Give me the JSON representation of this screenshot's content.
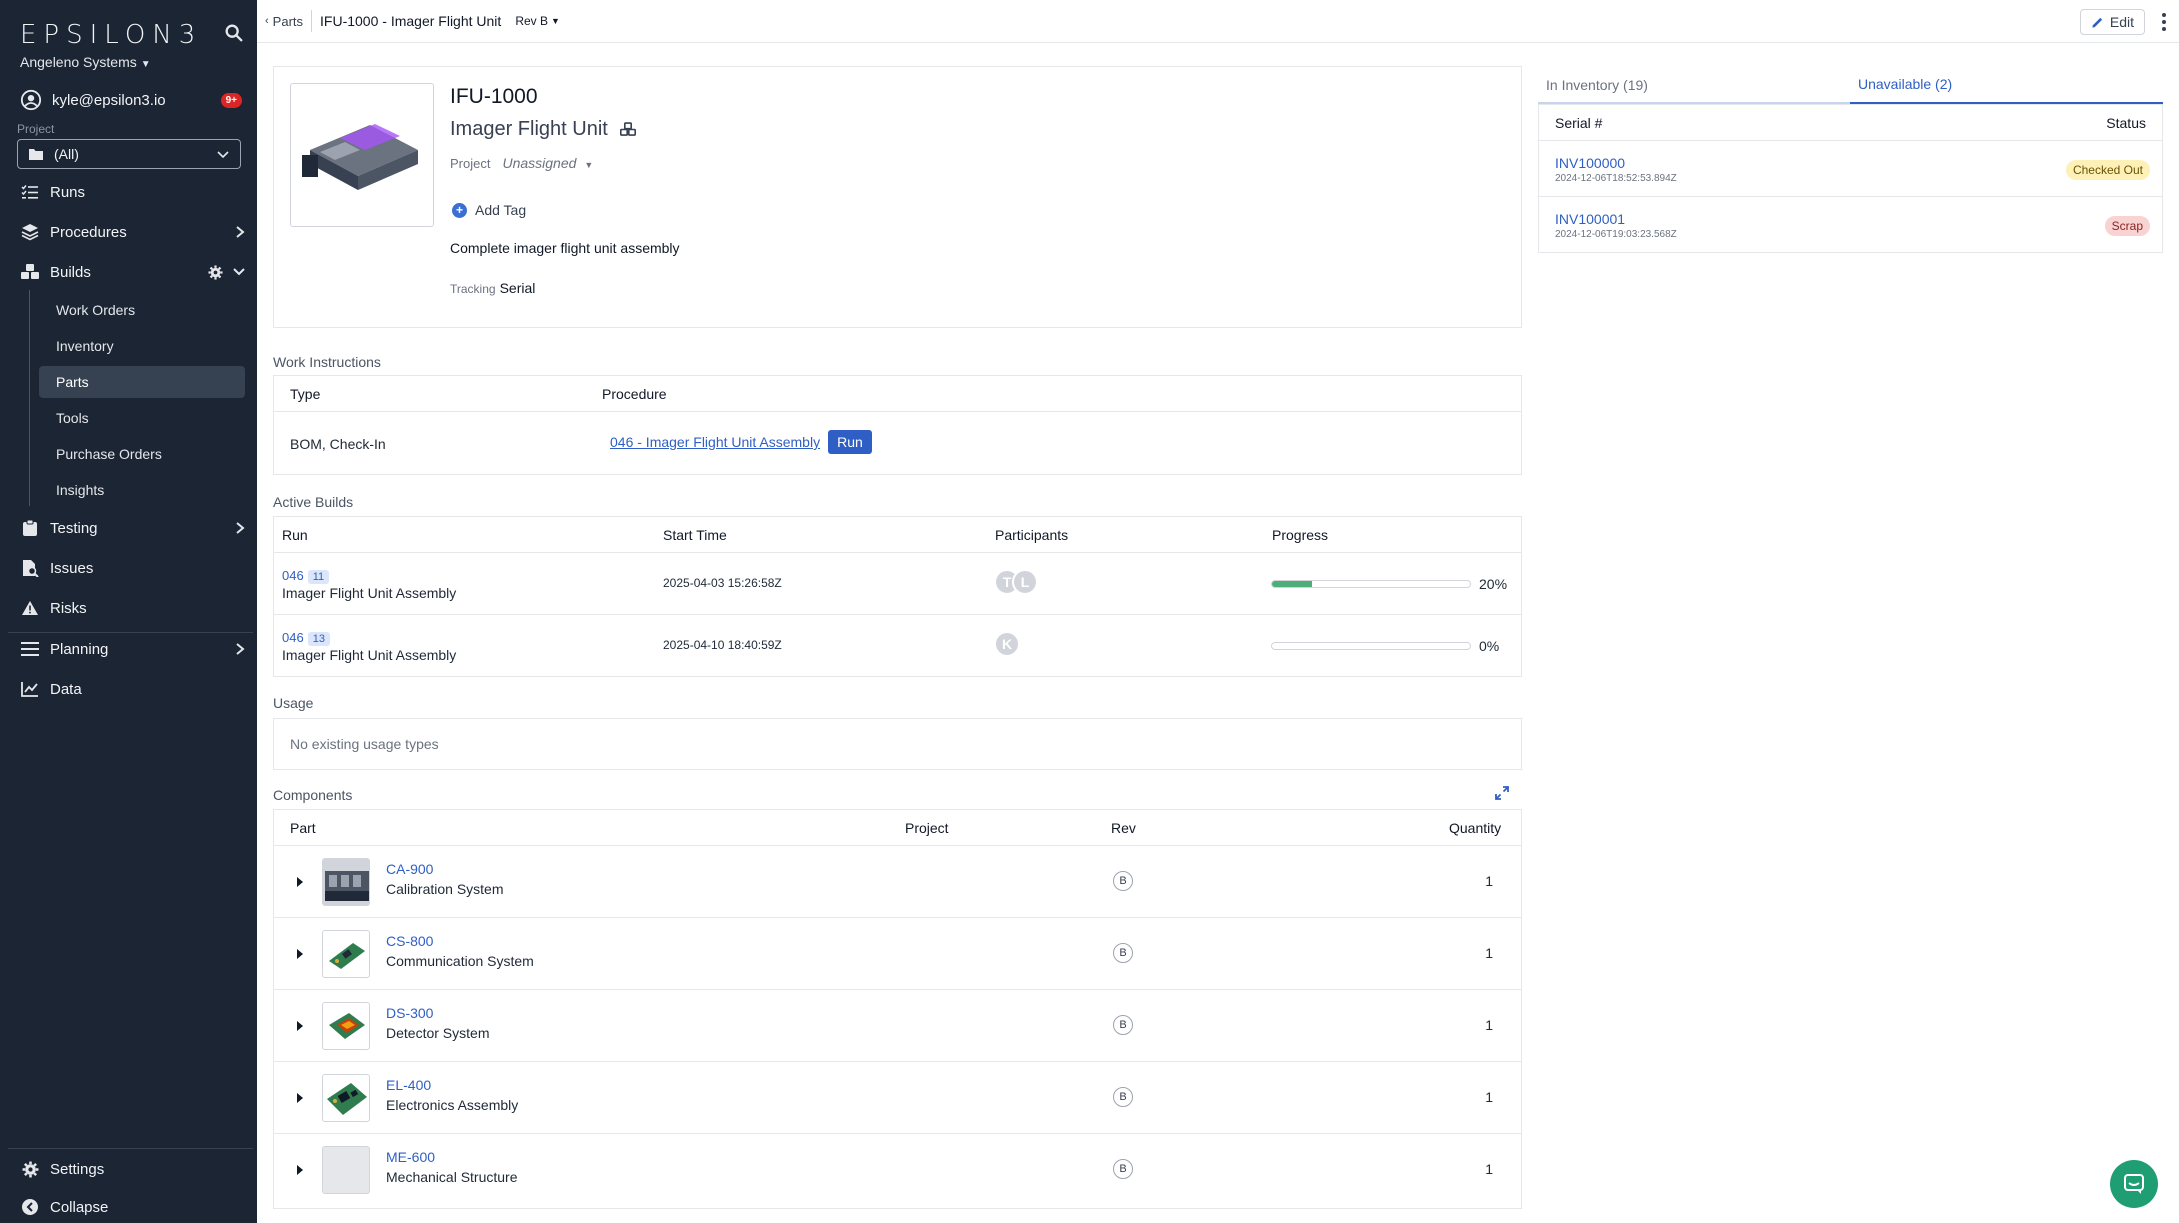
{
  "app": {
    "logo": "EPSILON3",
    "org": "Angeleno Systems"
  },
  "user": {
    "email": "kyle@epsilon3.io",
    "notifications": "9+"
  },
  "project_filter": {
    "label": "Project",
    "value": "(All)"
  },
  "nav": {
    "runs": "Runs",
    "procedures": "Procedures",
    "builds": "Builds",
    "builds_sub": [
      "Work Orders",
      "Inventory",
      "Parts",
      "Tools",
      "Purchase Orders",
      "Insights"
    ],
    "testing": "Testing",
    "issues": "Issues",
    "risks": "Risks",
    "planning": "Planning",
    "data": "Data",
    "settings": "Settings",
    "collapse": "Collapse"
  },
  "topbar": {
    "back": "Parts",
    "title": "IFU-1000 - Imager Flight Unit",
    "rev": "Rev B",
    "edit": "Edit"
  },
  "part": {
    "number": "IFU-1000",
    "name": "Imager Flight Unit",
    "project_label": "Project",
    "project_value": "Unassigned",
    "add_tag": "Add Tag",
    "description": "Complete imager flight unit assembly",
    "tracking_label": "Tracking",
    "tracking_value": "Serial"
  },
  "work_instructions": {
    "title": "Work Instructions",
    "headers": [
      "Type",
      "Procedure"
    ],
    "row": {
      "type": "BOM, Check-In",
      "procedure": "046 - Imager Flight Unit Assembly",
      "run": "Run"
    }
  },
  "active_builds": {
    "title": "Active Builds",
    "headers": [
      "Run",
      "Start Time",
      "Participants",
      "Progress"
    ],
    "rows": [
      {
        "id": "046",
        "badge": "11",
        "name": "Imager Flight Unit Assembly",
        "start": "2025-04-03 15:26:58Z",
        "participants": [
          "T",
          "L"
        ],
        "progress": 20,
        "progress_label": "20%"
      },
      {
        "id": "046",
        "badge": "13",
        "name": "Imager Flight Unit Assembly",
        "start": "2025-04-10 18:40:59Z",
        "participants": [
          "K"
        ],
        "progress": 0,
        "progress_label": "0%"
      }
    ]
  },
  "usage": {
    "title": "Usage",
    "empty": "No existing usage types"
  },
  "components": {
    "title": "Components",
    "headers": [
      "Part",
      "Project",
      "Rev",
      "Quantity"
    ],
    "rows": [
      {
        "part": "CA-900",
        "name": "Calibration System",
        "rev": "B",
        "qty": "1"
      },
      {
        "part": "CS-800",
        "name": "Communication System",
        "rev": "B",
        "qty": "1"
      },
      {
        "part": "DS-300",
        "name": "Detector System",
        "rev": "B",
        "qty": "1"
      },
      {
        "part": "EL-400",
        "name": "Electronics Assembly",
        "rev": "B",
        "qty": "1"
      },
      {
        "part": "ME-600",
        "name": "Mechanical Structure",
        "rev": "B",
        "qty": "1"
      }
    ]
  },
  "inventory": {
    "tab_in": "In Inventory (19)",
    "tab_unavailable": "Unavailable (2)",
    "headers": [
      "Serial #",
      "Status"
    ],
    "rows": [
      {
        "serial": "INV100000",
        "date": "2024-12-06T18:52:53.894Z",
        "status": "Checked Out"
      },
      {
        "serial": "INV100001",
        "date": "2024-12-06T19:03:23.568Z",
        "status": "Scrap"
      }
    ]
  },
  "colors": {
    "sidebar": "#1b2533",
    "accent": "#2f5fc4",
    "progress": "#4caf7a",
    "chat": "#1f9e74"
  }
}
